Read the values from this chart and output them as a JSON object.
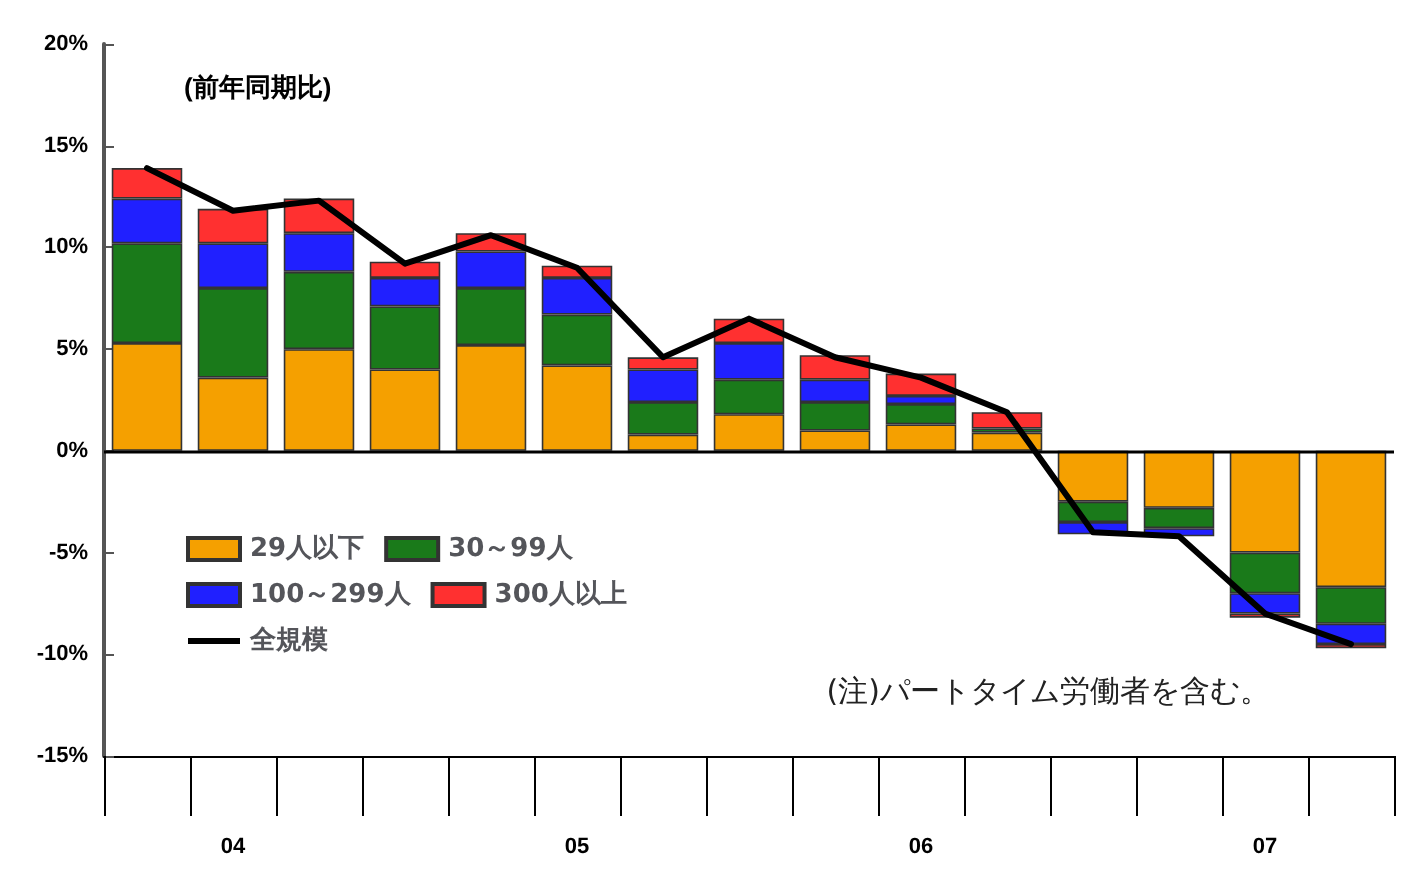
{
  "chart_data": {
    "type": "bar",
    "stacked": true,
    "ylabel": "(前年同期比)",
    "categories": [
      null,
      "04",
      null,
      null,
      null,
      "05",
      null,
      null,
      null,
      "06",
      null,
      null,
      null,
      "07",
      null
    ],
    "series": [
      {
        "name": "29人以下",
        "color": "#f5a000",
        "values": [
          5.3,
          3.6,
          5.0,
          4.0,
          5.2,
          4.2,
          0.8,
          1.8,
          1.0,
          1.3,
          0.9,
          -2.5,
          -2.8,
          -5.0,
          -6.7
        ]
      },
      {
        "name": "30～99人",
        "color": "#1a7a1a",
        "values": [
          4.9,
          4.4,
          3.8,
          3.1,
          2.8,
          2.5,
          1.6,
          1.7,
          1.4,
          1.0,
          0.2,
          -1.0,
          -1.0,
          -2.0,
          -1.8
        ]
      },
      {
        "name": "100～299人",
        "color": "#2020ff",
        "values": [
          2.2,
          2.2,
          1.9,
          1.4,
          1.8,
          1.8,
          1.6,
          1.8,
          1.1,
          0.4,
          null,
          -0.6,
          -0.4,
          -1.0,
          -1.0
        ]
      },
      {
        "name": "300人以上",
        "color": "#ff3030",
        "values": [
          1.5,
          1.7,
          1.7,
          0.8,
          0.9,
          0.6,
          0.6,
          1.2,
          1.2,
          1.1,
          0.8,
          null,
          null,
          -0.2,
          -0.2
        ]
      },
      {
        "name": "全規模",
        "type": "line",
        "color": "#000000",
        "values": [
          13.9,
          11.8,
          12.3,
          9.2,
          10.6,
          9.0,
          4.6,
          6.5,
          4.6,
          3.6,
          1.9,
          -4.0,
          -4.2,
          -8.0,
          -9.5
        ]
      }
    ],
    "ylim": [
      -15,
      20
    ],
    "yticks": [
      {
        "value": -15,
        "label": "-15%"
      },
      {
        "value": -10,
        "label": "-10%"
      },
      {
        "value": -5,
        "label": "-5%"
      },
      {
        "value": 0,
        "label": "0%"
      },
      {
        "value": 5,
        "label": "5%"
      },
      {
        "value": 10,
        "label": "10%"
      },
      {
        "value": 15,
        "label": "15%"
      },
      {
        "value": 20,
        "label": "20%"
      }
    ],
    "legend": "left",
    "marker": "none",
    "line_style": "solid",
    "annotations": [
      "(注)パートタイム労働者を含む。"
    ]
  }
}
